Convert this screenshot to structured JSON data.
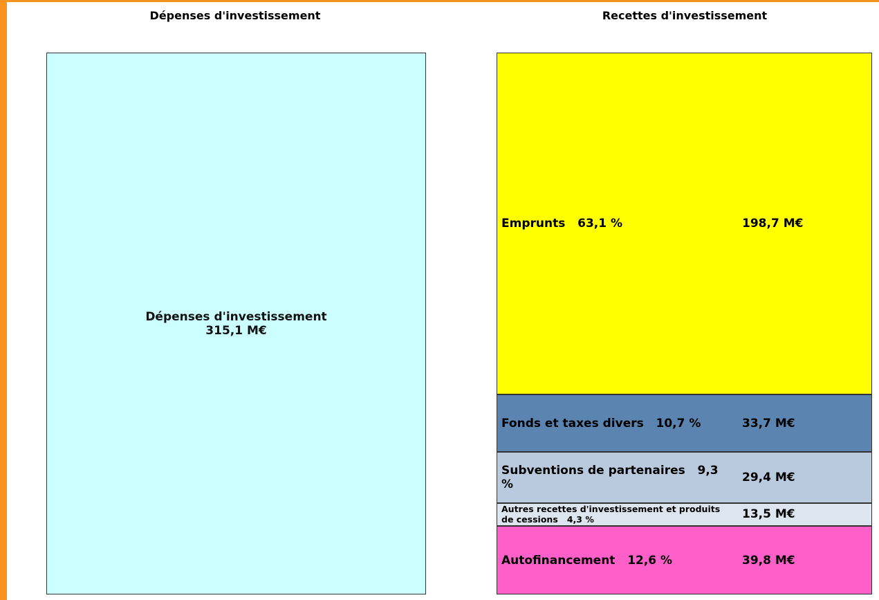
{
  "left": {
    "title": "Dépenses d'investissement",
    "label": "Dépenses d'investissement",
    "value": 315.1,
    "value_label": "315,1 M€",
    "color": "#ccffff"
  },
  "right": {
    "title": "Recettes d'investissement",
    "segments": [
      {
        "name": "Emprunts",
        "percent": 63.1,
        "percent_label": "63,1 %",
        "value": 198.7,
        "value_label": "198,7 M€",
        "color": "#ffff00"
      },
      {
        "name": "Fonds et taxes divers",
        "percent": 10.7,
        "percent_label": "10,7 %",
        "value": 33.7,
        "value_label": "33,7 M€",
        "color": "#5b84b1"
      },
      {
        "name": "Subventions de partenaires",
        "percent": 9.3,
        "percent_label": "9,3 %",
        "value": 29.4,
        "value_label": "29,4 M€",
        "color": "#b9c9de"
      },
      {
        "name": "Autres recettes d'investissement et produits de cessions",
        "percent": 4.3,
        "percent_label": "4,3 %",
        "value": 13.5,
        "value_label": "13,5 M€",
        "color": "#dde5ee"
      },
      {
        "name": "Autofinancement",
        "percent": 12.6,
        "percent_label": "12,6 %",
        "value": 39.8,
        "value_label": "39,8 M€",
        "color": "#ff5fc8"
      }
    ]
  }
}
